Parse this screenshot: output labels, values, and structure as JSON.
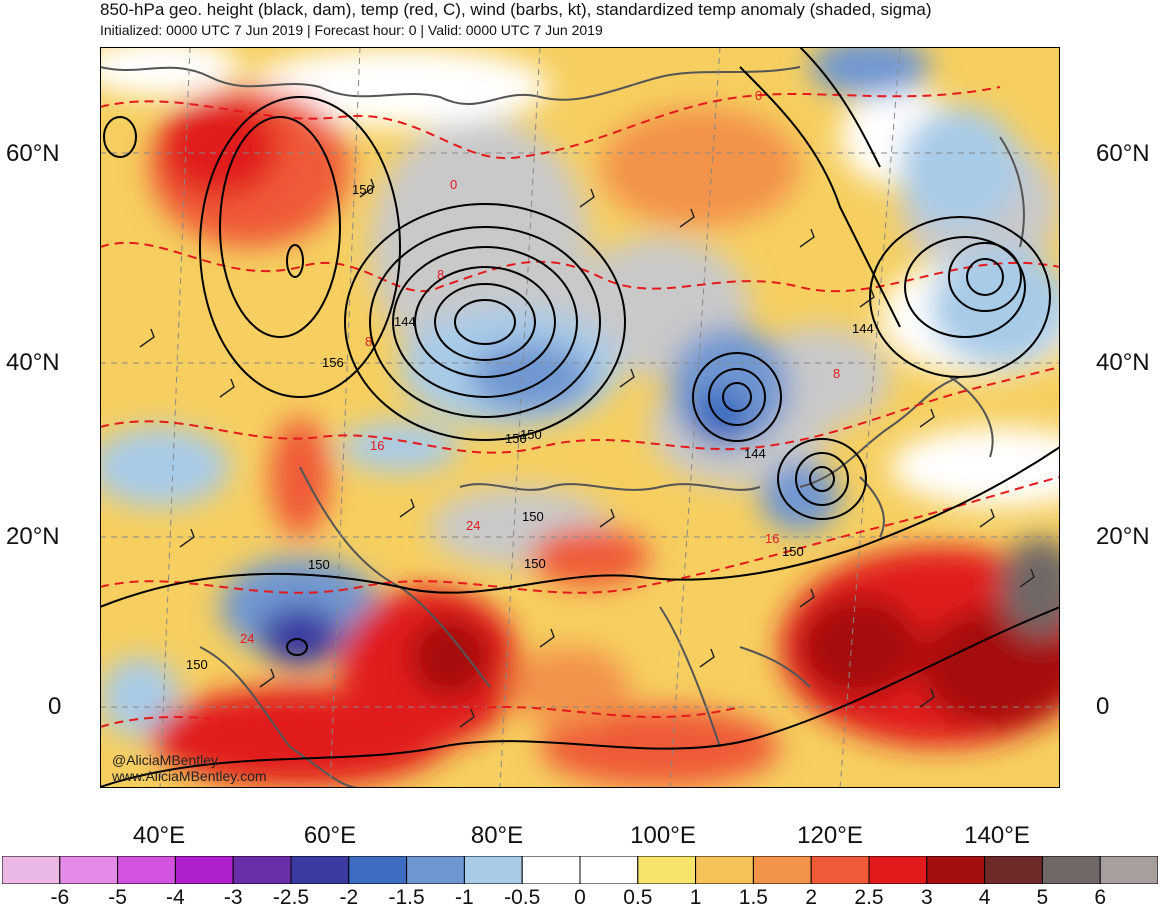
{
  "title": "850-hPa geo. height (black, dam), temp (red, C), wind (barbs, kt), standardized temp anomaly (shaded, sigma)",
  "subtitle": "Initialized: 0000 UTC 7 Jun 2019 | Forecast hour: 0 | Valid: 0000 UTC 7 Jun 2019",
  "map": {
    "lat_labels": [
      "60°N",
      "40°N",
      "20°N",
      "0"
    ],
    "lon_labels": [
      "40°E",
      "60°E",
      "80°E",
      "100°E",
      "120°E",
      "140°E"
    ],
    "height_labels": [
      "150",
      "144",
      "156",
      "150",
      "150",
      "150",
      "150",
      "144",
      "144",
      "150",
      "150",
      "150"
    ],
    "temp_labels": [
      "0",
      "8",
      "8",
      "16",
      "24",
      "16",
      "8",
      "0",
      "24"
    ],
    "credit_handle": "@AliciaMBentley",
    "credit_site": "www.AliciaMBentley.com",
    "colors": {
      "height_contour": "#000000",
      "temp_contour": "#e41a1c",
      "coastline": "#555555"
    }
  },
  "colorbar": {
    "labels": [
      "-6",
      "-5",
      "-4",
      "-3",
      "-2.5",
      "-2",
      "-1.5",
      "-1",
      "-0.5",
      "0",
      "0.5",
      "1",
      "1.5",
      "2",
      "2.5",
      "3",
      "4",
      "5",
      "6"
    ],
    "colors": [
      "#ebb8e6",
      "#e58ae6",
      "#d452e0",
      "#b01fcc",
      "#6a2fa8",
      "#3a3aa0",
      "#3e6cc0",
      "#6f97d2",
      "#a8cbe8",
      "#ffffff",
      "#ffffff",
      "#f7e46b",
      "#f5c25a",
      "#f3934a",
      "#ef5a38",
      "#e11b1b",
      "#a50e0e",
      "#6e2a28",
      "#706866",
      "#a79e9e"
    ]
  }
}
